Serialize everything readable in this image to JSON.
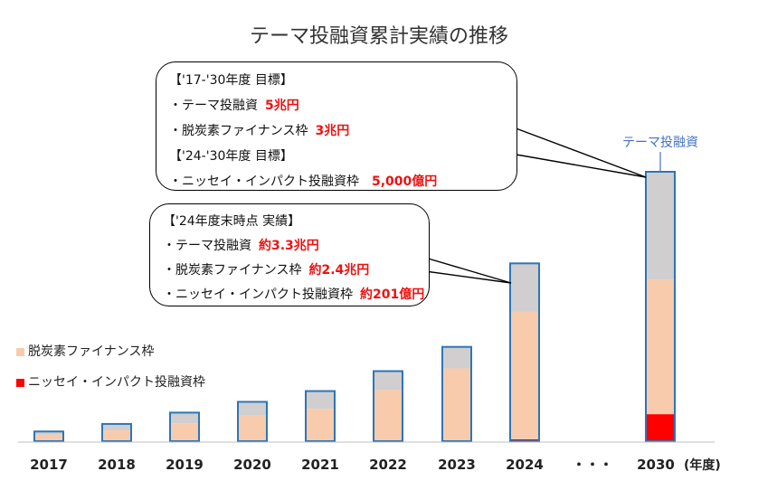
{
  "title": "テーマ投融資累計実績の推移",
  "legend": {
    "decarb_label": "脱炭素ファイナンス枠",
    "nissay_label": "ニッセイ・インパクト投融資枠"
  },
  "callout_2030": {
    "head1": "【'17-'30年度 目標】",
    "row1_label": "・テーマ投融資",
    "row1_value": "5兆円",
    "row2_label": "・脱炭素ファイナンス枠",
    "row2_value": "3兆円",
    "head2": "【'24-'30年度 目標】",
    "row3_label": "・ニッセイ・インパクト投融資枠",
    "row3_value": "5,000億円"
  },
  "callout_2024": {
    "head": "【'24年度末時点 実績】",
    "row1_label": "・テーマ投融資",
    "row1_value": "約3.3兆円",
    "row2_label": "・脱炭素ファイナンス枠",
    "row2_value": "約2.4兆円",
    "row3_label": "・ニッセイ・インパクト投融資枠",
    "row3_value": "約201億円"
  },
  "bar_label": "テーマ投融資",
  "ellipsis": "・・・",
  "unit_label": "(年度)",
  "colors": {
    "total": "#d0cece",
    "decarb": "#f8cbad",
    "nissay": "#ff0000",
    "border": "#2e75b6"
  },
  "chart_data": {
    "type": "bar",
    "title": "テーマ投融資累計実績の推移",
    "unit": "兆円",
    "categories": [
      "2017",
      "2018",
      "2019",
      "2020",
      "2021",
      "2022",
      "2023",
      "2024",
      "・・・",
      "2030"
    ],
    "series": [
      {
        "name": "テーマ投融資",
        "values": [
          0.18,
          0.32,
          0.53,
          0.73,
          0.93,
          1.3,
          1.75,
          3.3,
          null,
          5.0
        ]
      },
      {
        "name": "脱炭素ファイナンス枠",
        "values": [
          0.12,
          0.2,
          0.33,
          0.48,
          0.6,
          0.95,
          1.35,
          2.4,
          null,
          3.0
        ]
      },
      {
        "name": "ニッセイ・インパクト投融資枠",
        "values": [
          0,
          0,
          0,
          0,
          0,
          0,
          0,
          0.0201,
          null,
          0.5
        ]
      }
    ],
    "grid": false,
    "legend_position": "left"
  }
}
